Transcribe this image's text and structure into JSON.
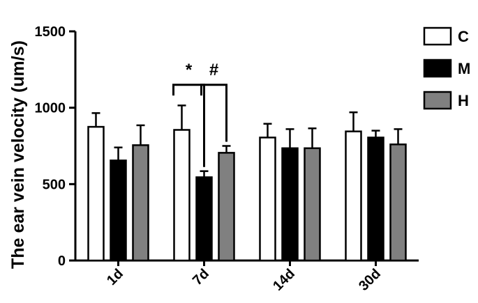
{
  "chart_data": {
    "type": "bar",
    "categories": [
      "1d",
      "7d",
      "14d",
      "30d"
    ],
    "series": [
      {
        "name": "C",
        "values": [
          875,
          855,
          805,
          845
        ],
        "errors": [
          90,
          160,
          90,
          125
        ],
        "color": "#ffffff"
      },
      {
        "name": "M",
        "values": [
          655,
          545,
          735,
          805
        ],
        "errors": [
          85,
          40,
          125,
          45
        ],
        "color": "#000000"
      },
      {
        "name": "H",
        "values": [
          755,
          705,
          735,
          760
        ],
        "errors": [
          130,
          45,
          130,
          100
        ],
        "color": "#808080"
      }
    ],
    "ylabel": "The ear vein velocity (um/s)",
    "xlabel": "",
    "ylim": [
      0,
      1500
    ],
    "yticks": [
      0,
      500,
      1000,
      1500
    ],
    "legend": "top-right",
    "grid": false,
    "annotations": [
      {
        "category": "7d",
        "from": "C",
        "to": "M",
        "label": "*"
      },
      {
        "category": "7d",
        "from": "M",
        "to": "H",
        "label": "#"
      }
    ]
  }
}
